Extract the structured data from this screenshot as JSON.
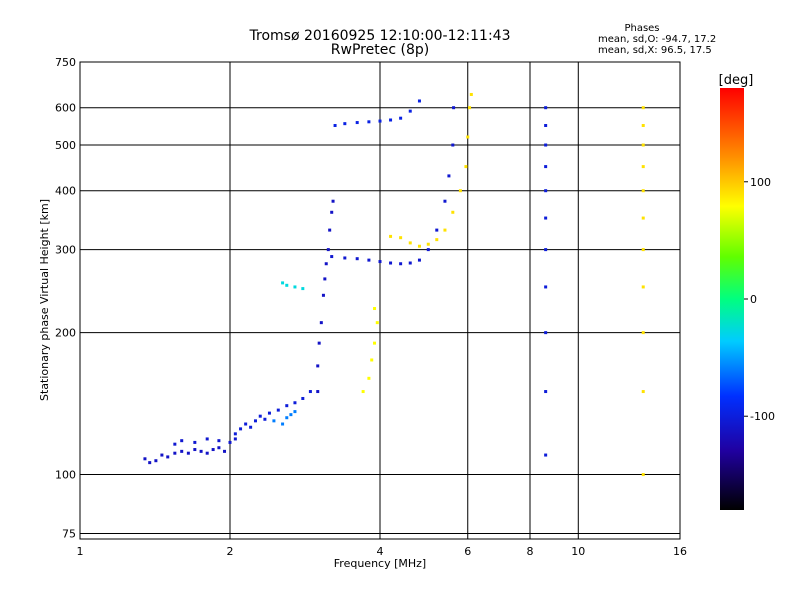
{
  "chart_data": {
    "type": "scatter",
    "title": "Tromsø 20160925 12:10:00-12:11:43",
    "subtitle": "RwPretec (8p)",
    "xlabel": "Frequency [MHz]",
    "ylabel": "Stationary phase Virtual Height [km]",
    "x_scale": "log",
    "y_scale": "log",
    "xlim": [
      1,
      16
    ],
    "ylim": [
      73,
      750
    ],
    "x_ticks": [
      1,
      2,
      4,
      6,
      8,
      10,
      16
    ],
    "x_tick_labels": [
      "1",
      "2",
      "4",
      "6",
      "8",
      "10",
      "16"
    ],
    "y_ticks": [
      75,
      100,
      200,
      300,
      400,
      500,
      600,
      750
    ],
    "y_tick_labels": [
      "75",
      "100",
      "200",
      "300",
      "400",
      "500",
      "600",
      "750"
    ],
    "grid": true,
    "stats": {
      "title": "Phases",
      "line_o": "mean, sd,O: -94.7, 17.2",
      "line_x": "mean, sd,X:  96.5, 17.5"
    },
    "colorbar": {
      "label": "[deg]",
      "range": [
        -180,
        180
      ],
      "ticks": [
        100,
        0,
        -100
      ],
      "tick_labels": [
        "100",
        "0",
        "-100"
      ]
    },
    "series": [
      {
        "phase": -110,
        "points": [
          [
            1.35,
            108
          ],
          [
            1.38,
            106
          ],
          [
            1.42,
            107
          ],
          [
            1.46,
            110
          ],
          [
            1.5,
            109
          ],
          [
            1.55,
            111
          ],
          [
            1.6,
            112
          ],
          [
            1.65,
            111
          ],
          [
            1.7,
            113
          ],
          [
            1.75,
            112
          ],
          [
            1.8,
            111
          ],
          [
            1.85,
            113
          ],
          [
            1.9,
            114
          ],
          [
            1.95,
            112
          ]
        ]
      },
      {
        "phase": -105,
        "points": [
          [
            1.55,
            116
          ],
          [
            1.6,
            118
          ],
          [
            1.7,
            117
          ],
          [
            1.8,
            119
          ],
          [
            1.9,
            118
          ],
          [
            2.0,
            117
          ],
          [
            2.05,
            119
          ]
        ]
      },
      {
        "phase": -100,
        "points": [
          [
            2.05,
            122
          ],
          [
            2.1,
            125
          ],
          [
            2.15,
            128
          ],
          [
            2.2,
            126
          ],
          [
            2.25,
            130
          ],
          [
            2.3,
            133
          ],
          [
            2.35,
            131
          ],
          [
            2.4,
            135
          ],
          [
            2.5,
            137
          ],
          [
            2.6,
            140
          ],
          [
            2.7,
            142
          ],
          [
            2.8,
            145
          ],
          [
            2.9,
            150
          ]
        ]
      },
      {
        "phase": -60,
        "points": [
          [
            2.45,
            130
          ],
          [
            2.55,
            128
          ],
          [
            2.6,
            132
          ],
          [
            2.65,
            134
          ],
          [
            2.7,
            136
          ]
        ]
      },
      {
        "phase": -30,
        "points": [
          [
            2.55,
            255
          ],
          [
            2.6,
            252
          ],
          [
            2.7,
            250
          ],
          [
            2.8,
            248
          ]
        ]
      },
      {
        "phase": -110,
        "points": [
          [
            3.0,
            150
          ],
          [
            3.0,
            170
          ],
          [
            3.02,
            190
          ],
          [
            3.05,
            210
          ],
          [
            3.08,
            240
          ],
          [
            3.1,
            260
          ],
          [
            3.12,
            280
          ],
          [
            3.15,
            300
          ],
          [
            3.17,
            330
          ],
          [
            3.2,
            360
          ],
          [
            3.22,
            380
          ]
        ]
      },
      {
        "phase": -105,
        "points": [
          [
            3.2,
            290
          ],
          [
            3.4,
            288
          ],
          [
            3.6,
            287
          ],
          [
            3.8,
            285
          ],
          [
            4.0,
            283
          ],
          [
            4.2,
            281
          ],
          [
            4.4,
            280
          ],
          [
            4.6,
            281
          ],
          [
            4.8,
            285
          ],
          [
            5.0,
            300
          ],
          [
            5.2,
            330
          ],
          [
            5.4,
            380
          ],
          [
            5.5,
            430
          ],
          [
            5.6,
            500
          ],
          [
            5.62,
            600
          ]
        ]
      },
      {
        "phase": -95,
        "points": [
          [
            3.25,
            550
          ],
          [
            3.4,
            555
          ],
          [
            3.6,
            558
          ],
          [
            3.8,
            560
          ],
          [
            4.0,
            562
          ],
          [
            4.2,
            565
          ],
          [
            4.4,
            570
          ],
          [
            4.6,
            590
          ],
          [
            4.8,
            620
          ]
        ]
      },
      {
        "phase": 80,
        "points": [
          [
            3.7,
            150
          ],
          [
            3.8,
            160
          ],
          [
            3.85,
            175
          ],
          [
            3.9,
            190
          ],
          [
            3.95,
            210
          ],
          [
            3.9,
            225
          ]
        ]
      },
      {
        "phase": 90,
        "points": [
          [
            4.2,
            320
          ],
          [
            4.4,
            318
          ],
          [
            4.6,
            310
          ],
          [
            4.8,
            305
          ],
          [
            5.0,
            308
          ],
          [
            5.2,
            315
          ],
          [
            5.4,
            330
          ],
          [
            5.6,
            360
          ],
          [
            5.8,
            400
          ],
          [
            5.95,
            450
          ],
          [
            6.0,
            520
          ],
          [
            6.05,
            600
          ],
          [
            6.1,
            640
          ]
        ]
      },
      {
        "phase": -100,
        "points": [
          [
            8.6,
            110
          ],
          [
            8.6,
            150
          ],
          [
            8.6,
            200
          ],
          [
            8.6,
            250
          ],
          [
            8.6,
            300
          ],
          [
            8.6,
            350
          ],
          [
            8.6,
            400
          ],
          [
            8.6,
            450
          ],
          [
            8.6,
            500
          ],
          [
            8.6,
            550
          ],
          [
            8.6,
            600
          ]
        ]
      },
      {
        "phase": 90,
        "points": [
          [
            13.5,
            100
          ],
          [
            13.5,
            150
          ],
          [
            13.5,
            200
          ],
          [
            13.5,
            250
          ],
          [
            13.5,
            300
          ],
          [
            13.5,
            350
          ],
          [
            13.5,
            400
          ],
          [
            13.5,
            450
          ],
          [
            13.5,
            500
          ],
          [
            13.5,
            550
          ],
          [
            13.5,
            600
          ]
        ]
      }
    ]
  }
}
